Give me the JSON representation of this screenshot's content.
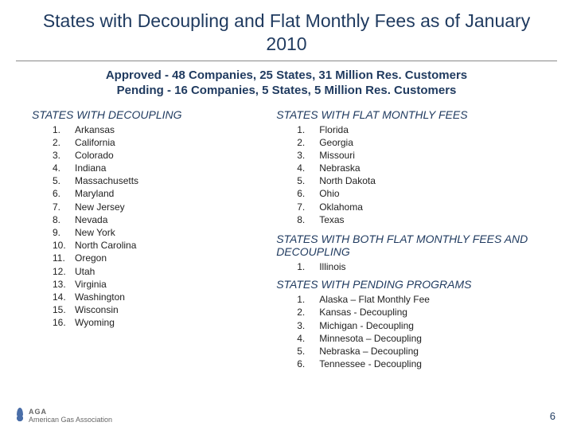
{
  "title": "States with Decoupling and Flat Monthly Fees as of January 2010",
  "subtitle_line1": "Approved - 48 Companies, 25 States, 31 Million Res. Customers",
  "subtitle_line2": "Pending - 16 Companies, 5 States, 5 Million Res. Customers",
  "left": {
    "heading": "STATES WITH DECOUPLING",
    "items": [
      "Arkansas",
      "California",
      "Colorado",
      "Indiana",
      "Massachusetts",
      "Maryland",
      "New Jersey",
      "Nevada",
      "New York",
      "North Carolina",
      "Oregon",
      "Utah",
      "Virginia",
      "Washington",
      "Wisconsin",
      "Wyoming"
    ]
  },
  "right": {
    "flat_heading": "STATES WITH FLAT MONTHLY FEES",
    "flat_items": [
      "Florida",
      "Georgia",
      "Missouri",
      "Nebraska",
      "North Dakota",
      "Ohio",
      "Oklahoma",
      "Texas"
    ],
    "both_heading": "STATES WITH BOTH FLAT MONTHLY FEES AND DECOUPLING",
    "both_items": [
      "Illinois"
    ],
    "pending_heading": "STATES WITH PENDING PROGRAMS",
    "pending_items": [
      "Alaska – Flat Monthly Fee",
      "Kansas - Decoupling",
      "Michigan - Decoupling",
      "Minnesota – Decoupling",
      "Nebraska – Decoupling",
      "Tennessee - Decoupling"
    ]
  },
  "footer_org": "American Gas Association",
  "page_number": "6",
  "colors": {
    "title": "#1f3a5f",
    "text": "#222222",
    "bg": "#ffffff"
  }
}
